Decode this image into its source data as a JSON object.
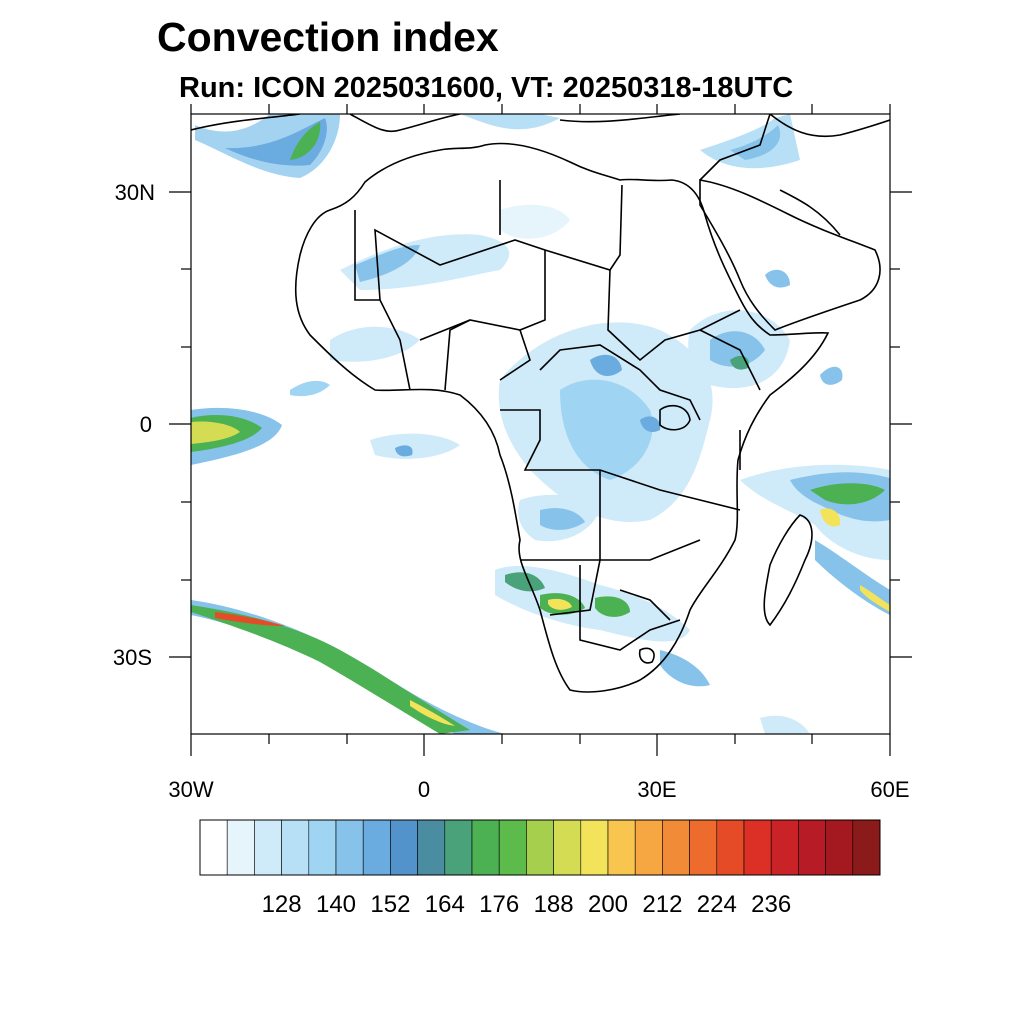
{
  "title": "Convection index",
  "subtitle": "Run: ICON 2025031600,  VT: 20250318-18UTC",
  "map": {
    "region": "Africa",
    "projection": "lat-lon",
    "lon_range": [
      -30,
      60
    ],
    "lat_range": [
      -40,
      40
    ],
    "x_tick_labels": [
      {
        "label": "30W",
        "lon": -30
      },
      {
        "label": "0",
        "lon": 0
      },
      {
        "label": "30E",
        "lon": 30
      },
      {
        "label": "60E",
        "lon": 60
      }
    ],
    "y_tick_labels": [
      {
        "label": "30N",
        "lat": 30
      },
      {
        "label": "0",
        "lat": 0
      },
      {
        "label": "30S",
        "lat": -30
      }
    ]
  },
  "colorbar": {
    "labels": [
      "128",
      "140",
      "152",
      "164",
      "176",
      "188",
      "200",
      "212",
      "224",
      "236"
    ],
    "colors": [
      "#ffffff",
      "#e6f4fc",
      "#cfeaf9",
      "#b7e0f6",
      "#9fd5f3",
      "#86c2ea",
      "#6aabe0",
      "#5393cc",
      "#4a8ca0",
      "#49a27a",
      "#4bb152",
      "#5cbb4a",
      "#a6cf4e",
      "#d4dc54",
      "#f3e35a",
      "#f8c64f",
      "#f7a742",
      "#f28b37",
      "#ec6b2d",
      "#e54b27",
      "#dc2f26",
      "#c92327",
      "#b71c26",
      "#a3191f",
      "#8b1a1a"
    ]
  }
}
